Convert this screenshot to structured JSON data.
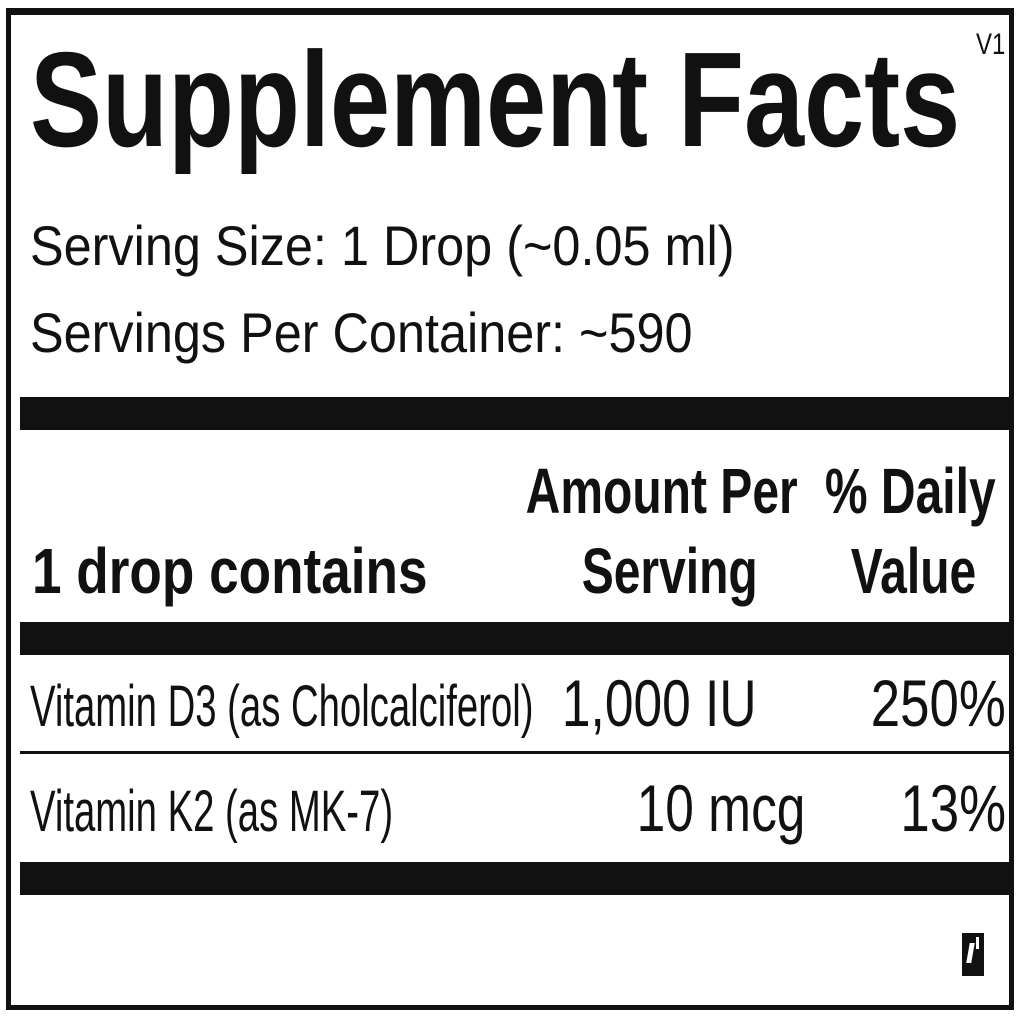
{
  "title": "Supplement Facts",
  "version": "V1",
  "serving_size": "Serving Size: 1 Drop (~0.05 ml)",
  "servings_per_container": "Servings Per Container: ~590",
  "header": {
    "contains": "1 drop contains",
    "amount_line1": "Amount Per",
    "amount_line2": "Serving",
    "dv_line1": "% Daily",
    "dv_line2": "Value"
  },
  "rows": [
    {
      "name": "Vitamin D3 (as Cholcalciferol)",
      "amount": "1,000 IU",
      "dv": "250%"
    },
    {
      "name": "Vitamin K2 (as MK-7)",
      "amount": "10 mcg",
      "dv": "13%"
    }
  ],
  "icon": "barcode-mark-icon"
}
